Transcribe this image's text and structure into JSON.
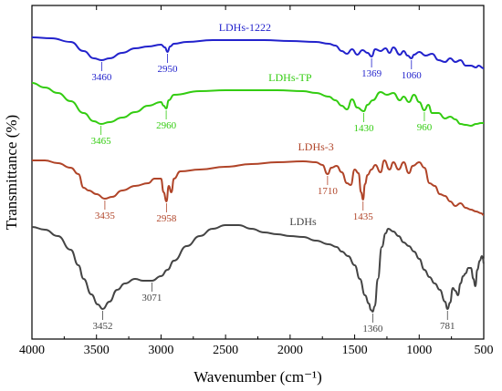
{
  "chart_data": {
    "type": "line",
    "xlabel": "Wavenumber (cm⁻¹)",
    "ylabel": "Transmittance (%)",
    "xlim": [
      4000,
      500
    ],
    "x_reversed": true,
    "x_ticks": [
      "4000",
      "3500",
      "3000",
      "2500",
      "2000",
      "1500",
      "1000",
      "500"
    ],
    "y_ticks_shown": false,
    "grid": false,
    "legend": "none",
    "series": [
      {
        "name": "LDHs-1222",
        "color": "#2222cc",
        "points": [
          [
            4000,
            35
          ],
          [
            3850,
            36
          ],
          [
            3700,
            40
          ],
          [
            3600,
            50
          ],
          [
            3520,
            58
          ],
          [
            3460,
            60
          ],
          [
            3400,
            58
          ],
          [
            3300,
            52
          ],
          [
            3200,
            47
          ],
          [
            3100,
            45
          ],
          [
            3000,
            43
          ],
          [
            2970,
            46
          ],
          [
            2950,
            51
          ],
          [
            2930,
            45
          ],
          [
            2900,
            42
          ],
          [
            2800,
            40
          ],
          [
            2600,
            38
          ],
          [
            2400,
            38
          ],
          [
            2200,
            38
          ],
          [
            2000,
            39
          ],
          [
            1800,
            40
          ],
          [
            1700,
            42
          ],
          [
            1650,
            44
          ],
          [
            1600,
            50
          ],
          [
            1560,
            53
          ],
          [
            1520,
            48
          ],
          [
            1480,
            54
          ],
          [
            1440,
            49
          ],
          [
            1400,
            52
          ],
          [
            1369,
            56
          ],
          [
            1340,
            48
          ],
          [
            1300,
            50
          ],
          [
            1260,
            47
          ],
          [
            1230,
            52
          ],
          [
            1200,
            46
          ],
          [
            1150,
            54
          ],
          [
            1120,
            50
          ],
          [
            1090,
            55
          ],
          [
            1060,
            58
          ],
          [
            1040,
            54
          ],
          [
            1000,
            51
          ],
          [
            950,
            55
          ],
          [
            900,
            53
          ],
          [
            850,
            60
          ],
          [
            800,
            62
          ],
          [
            760,
            58
          ],
          [
            720,
            62
          ],
          [
            680,
            60
          ],
          [
            640,
            66
          ],
          [
            600,
            66
          ],
          [
            560,
            68
          ],
          [
            540,
            66
          ],
          [
            500,
            69
          ]
        ],
        "peaks": [
          {
            "x": 3460,
            "label": "3460"
          },
          {
            "x": 2950,
            "label": "2950"
          },
          {
            "x": 1369,
            "label": "1369"
          },
          {
            "x": 1060,
            "label": "1060"
          }
        ]
      },
      {
        "name": "LDHs-TP",
        "color": "#33cc11",
        "points": [
          [
            4000,
            85
          ],
          [
            3900,
            90
          ],
          [
            3800,
            96
          ],
          [
            3700,
            105
          ],
          [
            3600,
            118
          ],
          [
            3520,
            127
          ],
          [
            3465,
            130
          ],
          [
            3400,
            128
          ],
          [
            3300,
            123
          ],
          [
            3200,
            117
          ],
          [
            3100,
            110
          ],
          [
            3000,
            106
          ],
          [
            2980,
            110
          ],
          [
            2960,
            113
          ],
          [
            2940,
            104
          ],
          [
            2900,
            98
          ],
          [
            2700,
            94
          ],
          [
            2500,
            93
          ],
          [
            2300,
            93
          ],
          [
            2100,
            93
          ],
          [
            1900,
            94
          ],
          [
            1800,
            96
          ],
          [
            1700,
            100
          ],
          [
            1650,
            104
          ],
          [
            1600,
            110
          ],
          [
            1560,
            114
          ],
          [
            1520,
            103
          ],
          [
            1480,
            112
          ],
          [
            1430,
            116
          ],
          [
            1400,
            109
          ],
          [
            1360,
            104
          ],
          [
            1300,
            95
          ],
          [
            1250,
            98
          ],
          [
            1200,
            96
          ],
          [
            1150,
            104
          ],
          [
            1120,
            100
          ],
          [
            1080,
            106
          ],
          [
            1040,
            98
          ],
          [
            1000,
            106
          ],
          [
            960,
            115
          ],
          [
            930,
            109
          ],
          [
            900,
            118
          ],
          [
            850,
            118
          ],
          [
            800,
            124
          ],
          [
            760,
            122
          ],
          [
            720,
            125
          ],
          [
            680,
            130
          ],
          [
            640,
            131
          ],
          [
            600,
            132
          ],
          [
            560,
            130
          ],
          [
            520,
            129
          ],
          [
            500,
            129
          ]
        ],
        "peaks": [
          {
            "x": 3465,
            "label": "3465"
          },
          {
            "x": 2960,
            "label": "2960"
          },
          {
            "x": 1430,
            "label": "1430"
          },
          {
            "x": 960,
            "label": "960"
          }
        ]
      },
      {
        "name": "LDHs-3",
        "color": "#b04428",
        "points": [
          [
            4000,
            170
          ],
          [
            3900,
            170
          ],
          [
            3800,
            173
          ],
          [
            3700,
            178
          ],
          [
            3640,
            185
          ],
          [
            3600,
            200
          ],
          [
            3560,
            203
          ],
          [
            3500,
            207
          ],
          [
            3435,
            212
          ],
          [
            3380,
            210
          ],
          [
            3300,
            203
          ],
          [
            3200,
            198
          ],
          [
            3100,
            195
          ],
          [
            3050,
            190
          ],
          [
            3000,
            190
          ],
          [
            2980,
            205
          ],
          [
            2958,
            215
          ],
          [
            2940,
            198
          ],
          [
            2920,
            205
          ],
          [
            2900,
            190
          ],
          [
            2850,
            182
          ],
          [
            2700,
            180
          ],
          [
            2500,
            177
          ],
          [
            2300,
            174
          ],
          [
            2100,
            172
          ],
          [
            1900,
            171
          ],
          [
            1800,
            172
          ],
          [
            1750,
            175
          ],
          [
            1710,
            185
          ],
          [
            1680,
            178
          ],
          [
            1640,
            176
          ],
          [
            1600,
            183
          ],
          [
            1560,
            195
          ],
          [
            1530,
            197
          ],
          [
            1500,
            180
          ],
          [
            1470,
            184
          ],
          [
            1450,
            205
          ],
          [
            1435,
            213
          ],
          [
            1420,
            196
          ],
          [
            1400,
            186
          ],
          [
            1370,
            180
          ],
          [
            1340,
            175
          ],
          [
            1300,
            183
          ],
          [
            1270,
            170
          ],
          [
            1230,
            180
          ],
          [
            1200,
            172
          ],
          [
            1160,
            180
          ],
          [
            1120,
            172
          ],
          [
            1080,
            184
          ],
          [
            1050,
            176
          ],
          [
            1000,
            172
          ],
          [
            960,
            178
          ],
          [
            920,
            195
          ],
          [
            880,
            198
          ],
          [
            840,
            207
          ],
          [
            800,
            209
          ],
          [
            760,
            215
          ],
          [
            720,
            220
          ],
          [
            680,
            217
          ],
          [
            640,
            222
          ],
          [
            600,
            224
          ],
          [
            560,
            226
          ],
          [
            520,
            228
          ],
          [
            500,
            230
          ]
        ],
        "peaks": [
          {
            "x": 3435,
            "label": "3435"
          },
          {
            "x": 2958,
            "label": "2958"
          },
          {
            "x": 1710,
            "label": "1710"
          },
          {
            "x": 1435,
            "label": "1435"
          }
        ]
      },
      {
        "name": "LDHs",
        "color": "#444444",
        "points": [
          [
            4000,
            243
          ],
          [
            3900,
            246
          ],
          [
            3800,
            253
          ],
          [
            3700,
            268
          ],
          [
            3640,
            285
          ],
          [
            3600,
            300
          ],
          [
            3540,
            317
          ],
          [
            3490,
            328
          ],
          [
            3452,
            333
          ],
          [
            3400,
            325
          ],
          [
            3340,
            312
          ],
          [
            3280,
            305
          ],
          [
            3200,
            300
          ],
          [
            3140,
            302
          ],
          [
            3071,
            302
          ],
          [
            3000,
            297
          ],
          [
            2950,
            290
          ],
          [
            2900,
            280
          ],
          [
            2800,
            264
          ],
          [
            2700,
            253
          ],
          [
            2600,
            245
          ],
          [
            2500,
            241
          ],
          [
            2400,
            241
          ],
          [
            2300,
            245
          ],
          [
            2200,
            249
          ],
          [
            2100,
            251
          ],
          [
            2000,
            253
          ],
          [
            1900,
            254
          ],
          [
            1800,
            258
          ],
          [
            1700,
            262
          ],
          [
            1640,
            265
          ],
          [
            1600,
            270
          ],
          [
            1550,
            275
          ],
          [
            1500,
            285
          ],
          [
            1460,
            300
          ],
          [
            1420,
            318
          ],
          [
            1390,
            327
          ],
          [
            1375,
            334
          ],
          [
            1360,
            336
          ],
          [
            1345,
            330
          ],
          [
            1320,
            300
          ],
          [
            1290,
            265
          ],
          [
            1260,
            250
          ],
          [
            1240,
            245
          ],
          [
            1200,
            248
          ],
          [
            1160,
            253
          ],
          [
            1120,
            260
          ],
          [
            1080,
            264
          ],
          [
            1040,
            270
          ],
          [
            1000,
            278
          ],
          [
            960,
            290
          ],
          [
            920,
            298
          ],
          [
            880,
            305
          ],
          [
            840,
            312
          ],
          [
            800,
            325
          ],
          [
            781,
            333
          ],
          [
            760,
            326
          ],
          [
            740,
            310
          ],
          [
            720,
            313
          ],
          [
            700,
            318
          ],
          [
            680,
            305
          ],
          [
            660,
            297
          ],
          [
            640,
            294
          ],
          [
            620,
            288
          ],
          [
            600,
            288
          ],
          [
            580,
            300
          ],
          [
            565,
            308
          ],
          [
            550,
            290
          ],
          [
            530,
            280
          ],
          [
            515,
            275
          ],
          [
            505,
            278
          ],
          [
            500,
            283
          ]
        ],
        "peaks": [
          {
            "x": 3452,
            "label": "3452"
          },
          {
            "x": 3071,
            "label": "3071"
          },
          {
            "x": 1360,
            "label": "1360"
          },
          {
            "x": 781,
            "label": "781"
          }
        ]
      }
    ]
  }
}
